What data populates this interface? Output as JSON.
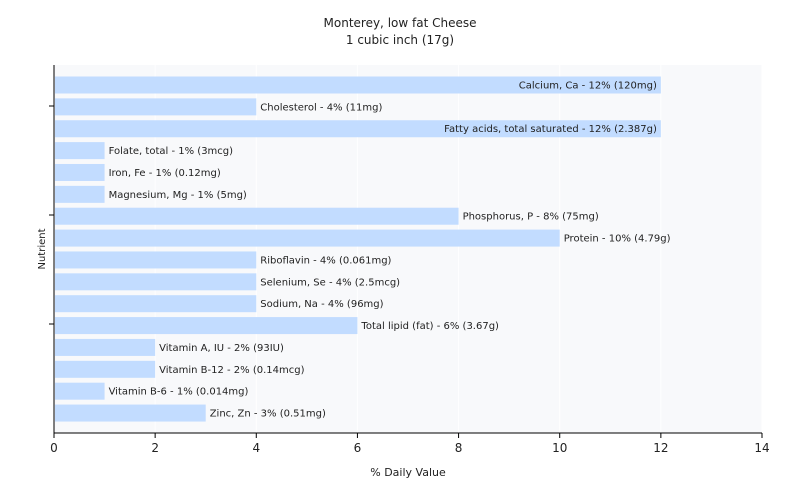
{
  "chart_data": {
    "type": "bar",
    "orientation": "horizontal",
    "title": "Monterey, low fat Cheese",
    "subtitle": "1 cubic inch (17g)",
    "xlabel": "% Daily Value",
    "ylabel": "Nutrient",
    "xlim": [
      0,
      14
    ],
    "xticks": [
      0,
      2,
      4,
      6,
      8,
      10,
      12,
      14
    ],
    "grid": true,
    "legend": "none",
    "bar_color": "#c2dcff",
    "background_color": "#f8f9fb",
    "gridline_color": "#ffffff",
    "categories": [
      "Calcium, Ca",
      "Cholesterol",
      "Fatty acids, total saturated",
      "Folate, total",
      "Iron, Fe",
      "Magnesium, Mg",
      "Phosphorus, P",
      "Protein",
      "Riboflavin",
      "Selenium, Se",
      "Sodium, Na",
      "Total lipid (fat)",
      "Vitamin A, IU",
      "Vitamin B-12",
      "Vitamin B-6",
      "Zinc, Zn"
    ],
    "values": [
      12,
      4,
      12,
      1,
      1,
      1,
      8,
      10,
      4,
      4,
      4,
      6,
      2,
      2,
      1,
      3
    ],
    "data_labels": [
      "Calcium, Ca - 12% (120mg)",
      "Cholesterol - 4% (11mg)",
      "Fatty acids, total saturated - 12% (2.387g)",
      "Folate, total - 1% (3mcg)",
      "Iron, Fe - 1% (0.12mg)",
      "Magnesium, Mg - 1% (5mg)",
      "Phosphorus, P - 8% (75mg)",
      "Protein - 10% (4.79g)",
      "Riboflavin - 4% (0.061mg)",
      "Selenium, Se - 4% (2.5mcg)",
      "Sodium, Na - 4% (96mg)",
      "Total lipid (fat) - 6% (3.67g)",
      "Vitamin A, IU - 2% (93IU)",
      "Vitamin B-12 - 2% (0.14mcg)",
      "Vitamin B-6 - 1% (0.014mg)",
      "Zinc, Zn - 3% (0.51mg)"
    ]
  }
}
